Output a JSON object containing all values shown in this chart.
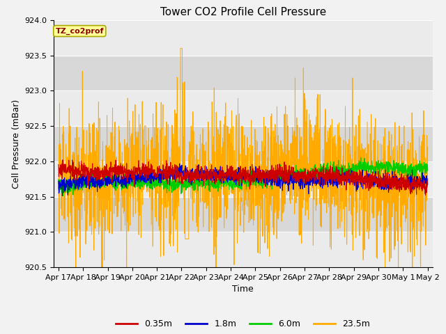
{
  "title": "Tower CO2 Profile Cell Pressure",
  "ylabel": "Cell Pressure (mBar)",
  "xlabel": "Time",
  "ylim": [
    920.5,
    924.0
  ],
  "series_labels": [
    "0.35m",
    "1.8m",
    "6.0m",
    "23.5m"
  ],
  "series_colors": [
    "#cc0000",
    "#0000cc",
    "#00cc00",
    "#ffaa00"
  ],
  "label_text": "TZ_co2prof",
  "label_color": "#880000",
  "label_bg": "#ffff99",
  "label_edge": "#aaa800",
  "plot_bg_light": "#ebebeb",
  "plot_bg_dark": "#d8d8d8",
  "yticks": [
    920.5,
    921.0,
    921.5,
    922.0,
    922.5,
    923.0,
    923.5,
    924.0
  ],
  "xtick_labels": [
    "Apr 17",
    "Apr 18",
    "Apr 19",
    "Apr 20",
    "Apr 21",
    "Apr 22",
    "Apr 23",
    "Apr 24",
    "Apr 25",
    "Apr 26",
    "Apr 27",
    "Apr 28",
    "Apr 29",
    "Apr 30",
    "May 1",
    "May 2"
  ],
  "base_pressure": 921.75,
  "title_fontsize": 11,
  "tick_fontsize": 8,
  "ylabel_fontsize": 9
}
